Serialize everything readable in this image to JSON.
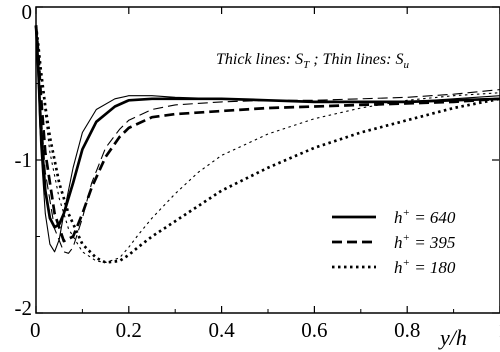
{
  "chart_data": {
    "type": "line",
    "xlabel": "y/h",
    "ylabel": "",
    "xlim": [
      0,
      1
    ],
    "ylim": [
      -2,
      0
    ],
    "x_ticks": [
      "0",
      "0.2",
      "0.4",
      "0.6",
      "0.8",
      "1"
    ],
    "y_ticks": [
      "0",
      "-1",
      "-2"
    ],
    "annotation": {
      "thick_prefix": "Thick lines",
      "thick_symbol": "S",
      "thick_subscript": "T",
      "separator": ";",
      "thin_prefix": "Thin lines",
      "thin_symbol": "S",
      "thin_subscript": "u"
    },
    "legend": {
      "position": "lower-right",
      "entries": [
        {
          "base": "h",
          "sup": "+",
          "rest": " = 640",
          "style": "solid"
        },
        {
          "base": "h",
          "sup": "+",
          "rest": " = 395",
          "style": "dashed"
        },
        {
          "base": "h",
          "sup": "+",
          "rest": " = 180",
          "style": "dotted"
        }
      ]
    },
    "series": [
      {
        "style": "solid",
        "weight": "thick",
        "x": [
          0,
          0.005,
          0.01,
          0.02,
          0.03,
          0.04,
          0.05,
          0.06,
          0.08,
          0.1,
          0.13,
          0.17,
          0.2,
          0.25,
          0.3,
          0.4,
          0.5,
          0.6,
          0.7,
          0.8,
          0.9,
          1.0
        ],
        "y": [
          -0.12,
          -0.4,
          -0.78,
          -1.2,
          -1.38,
          -1.44,
          -1.42,
          -1.35,
          -1.15,
          -0.93,
          -0.75,
          -0.65,
          -0.61,
          -0.6,
          -0.6,
          -0.6,
          -0.61,
          -0.62,
          -0.62,
          -0.62,
          -0.61,
          -0.6
        ]
      },
      {
        "style": "solid",
        "weight": "thin",
        "x": [
          0,
          0.005,
          0.01,
          0.02,
          0.03,
          0.04,
          0.05,
          0.06,
          0.08,
          0.1,
          0.13,
          0.17,
          0.2,
          0.25,
          0.3,
          0.4,
          0.5,
          0.6,
          0.7,
          0.8,
          0.9,
          1.0
        ],
        "y": [
          -0.15,
          -0.5,
          -0.9,
          -1.35,
          -1.55,
          -1.6,
          -1.52,
          -1.35,
          -1.05,
          -0.82,
          -0.67,
          -0.6,
          -0.58,
          -0.58,
          -0.59,
          -0.6,
          -0.61,
          -0.62,
          -0.62,
          -0.62,
          -0.6,
          -0.58
        ]
      },
      {
        "style": "dashed",
        "weight": "thick",
        "x": [
          0,
          0.005,
          0.01,
          0.02,
          0.04,
          0.06,
          0.08,
          0.1,
          0.12,
          0.15,
          0.18,
          0.2,
          0.25,
          0.3,
          0.4,
          0.5,
          0.6,
          0.7,
          0.8,
          0.9,
          1.0
        ],
        "y": [
          -0.12,
          -0.3,
          -0.55,
          -0.95,
          -1.35,
          -1.53,
          -1.5,
          -1.35,
          -1.18,
          -0.98,
          -0.85,
          -0.79,
          -0.72,
          -0.7,
          -0.68,
          -0.66,
          -0.65,
          -0.64,
          -0.63,
          -0.62,
          -0.6
        ]
      },
      {
        "style": "dashed",
        "weight": "thin",
        "x": [
          0,
          0.005,
          0.01,
          0.02,
          0.04,
          0.06,
          0.07,
          0.08,
          0.1,
          0.12,
          0.15,
          0.18,
          0.2,
          0.25,
          0.3,
          0.4,
          0.5,
          0.6,
          0.7,
          0.8,
          0.9,
          1.0
        ],
        "y": [
          -0.15,
          -0.38,
          -0.65,
          -1.08,
          -1.45,
          -1.6,
          -1.61,
          -1.57,
          -1.38,
          -1.15,
          -0.92,
          -0.8,
          -0.74,
          -0.67,
          -0.64,
          -0.62,
          -0.61,
          -0.61,
          -0.6,
          -0.59,
          -0.57,
          -0.54
        ]
      },
      {
        "style": "dotted",
        "weight": "thick",
        "x": [
          0,
          0.005,
          0.01,
          0.02,
          0.03,
          0.05,
          0.07,
          0.1,
          0.13,
          0.15,
          0.18,
          0.2,
          0.22,
          0.25,
          0.3,
          0.35,
          0.4,
          0.5,
          0.6,
          0.7,
          0.8,
          0.9,
          1.0
        ],
        "y": [
          -0.12,
          -0.25,
          -0.4,
          -0.65,
          -0.85,
          -1.15,
          -1.35,
          -1.55,
          -1.64,
          -1.67,
          -1.66,
          -1.62,
          -1.57,
          -1.5,
          -1.4,
          -1.3,
          -1.2,
          -1.05,
          -0.92,
          -0.82,
          -0.74,
          -0.66,
          -0.6
        ]
      },
      {
        "style": "dotted",
        "weight": "thin",
        "x": [
          0,
          0.005,
          0.01,
          0.02,
          0.03,
          0.05,
          0.07,
          0.1,
          0.13,
          0.15,
          0.18,
          0.2,
          0.22,
          0.25,
          0.3,
          0.35,
          0.4,
          0.5,
          0.6,
          0.7,
          0.8,
          0.9,
          1.0
        ],
        "y": [
          -0.12,
          -0.25,
          -0.42,
          -0.7,
          -0.95,
          -1.25,
          -1.45,
          -1.6,
          -1.66,
          -1.67,
          -1.64,
          -1.57,
          -1.49,
          -1.38,
          -1.22,
          -1.08,
          -0.97,
          -0.83,
          -0.73,
          -0.66,
          -0.61,
          -0.58,
          -0.56
        ]
      }
    ]
  }
}
